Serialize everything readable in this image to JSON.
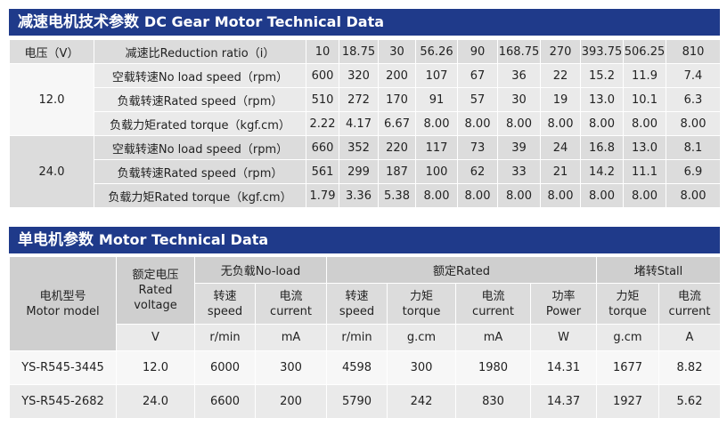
{
  "t1": {
    "title_cn": "减速电机技术参数",
    "title_en": "DC Gear Motor Technical Data",
    "voltage_label": "电压（V）",
    "ratio_label": "减速比Reduction ratio（i）",
    "ratios": [
      "10",
      "18.75",
      "30",
      "56.26",
      "90",
      "168.75",
      "270",
      "393.75",
      "506.25",
      "810"
    ],
    "groups": [
      {
        "voltage": "12.0",
        "rows": [
          {
            "label": "空载转速No load speed（rpm）",
            "values": [
              "600",
              "320",
              "200",
              "107",
              "67",
              "36",
              "22",
              "15.2",
              "11.9",
              "7.4"
            ]
          },
          {
            "label": "负载转速Rated speed（rpm）",
            "values": [
              "510",
              "272",
              "170",
              "91",
              "57",
              "30",
              "19",
              "13.0",
              "10.1",
              "6.3"
            ]
          },
          {
            "label": "负载力矩rated torque（kgf.cm）",
            "values": [
              "2.22",
              "4.17",
              "6.67",
              "8.00",
              "8.00",
              "8.00",
              "8.00",
              "8.00",
              "8.00",
              "8.00"
            ]
          }
        ]
      },
      {
        "voltage": "24.0",
        "rows": [
          {
            "label": "空载转速No load speed（rpm）",
            "values": [
              "660",
              "352",
              "220",
              "117",
              "73",
              "39",
              "24",
              "16.8",
              "13.0",
              "8.1"
            ]
          },
          {
            "label": "负载转速Rated speed（rpm）",
            "values": [
              "561",
              "299",
              "187",
              "100",
              "62",
              "33",
              "21",
              "14.2",
              "11.1",
              "6.9"
            ]
          },
          {
            "label": "负载力矩Rated torque（kgf.cm）",
            "values": [
              "1.79",
              "3.36",
              "5.38",
              "8.00",
              "8.00",
              "8.00",
              "8.00",
              "8.00",
              "8.00",
              "8.00"
            ]
          }
        ]
      }
    ]
  },
  "t2": {
    "title_cn": "单电机参数",
    "title_en": "Motor Technical Data",
    "model_label_cn": "电机型号",
    "model_label_en": "Motor model",
    "rated_voltage_cn": "额定电压",
    "rated_voltage_en1": "Rated",
    "rated_voltage_en2": "voltage",
    "group_noload": "无负载No-load",
    "group_rated": "额定Rated",
    "group_stall": "堵转Stall",
    "sub": [
      {
        "cn": "转速",
        "en": "speed",
        "unit": "r/min"
      },
      {
        "cn": "电流",
        "en": "current",
        "unit": "mA"
      },
      {
        "cn": "转速",
        "en": "speed",
        "unit": "r/min"
      },
      {
        "cn": "力矩",
        "en": "torque",
        "unit": "g.cm"
      },
      {
        "cn": "电流",
        "en": "current",
        "unit": "mA"
      },
      {
        "cn": "功率",
        "en": "Power",
        "unit": "W"
      },
      {
        "cn": "力矩",
        "en": "torque",
        "unit": "g.cm"
      },
      {
        "cn": "电流",
        "en": "current",
        "unit": "A"
      }
    ],
    "voltage_unit": "V",
    "models": [
      {
        "model": "YS-R545-3445",
        "voltage": "12.0",
        "values": [
          "6000",
          "300",
          "4598",
          "300",
          "1980",
          "14.31",
          "1677",
          "8.82"
        ]
      },
      {
        "model": "YS-R545-2682",
        "voltage": "24.0",
        "values": [
          "6600",
          "200",
          "5790",
          "242",
          "830",
          "14.37",
          "1927",
          "5.62"
        ]
      }
    ]
  }
}
